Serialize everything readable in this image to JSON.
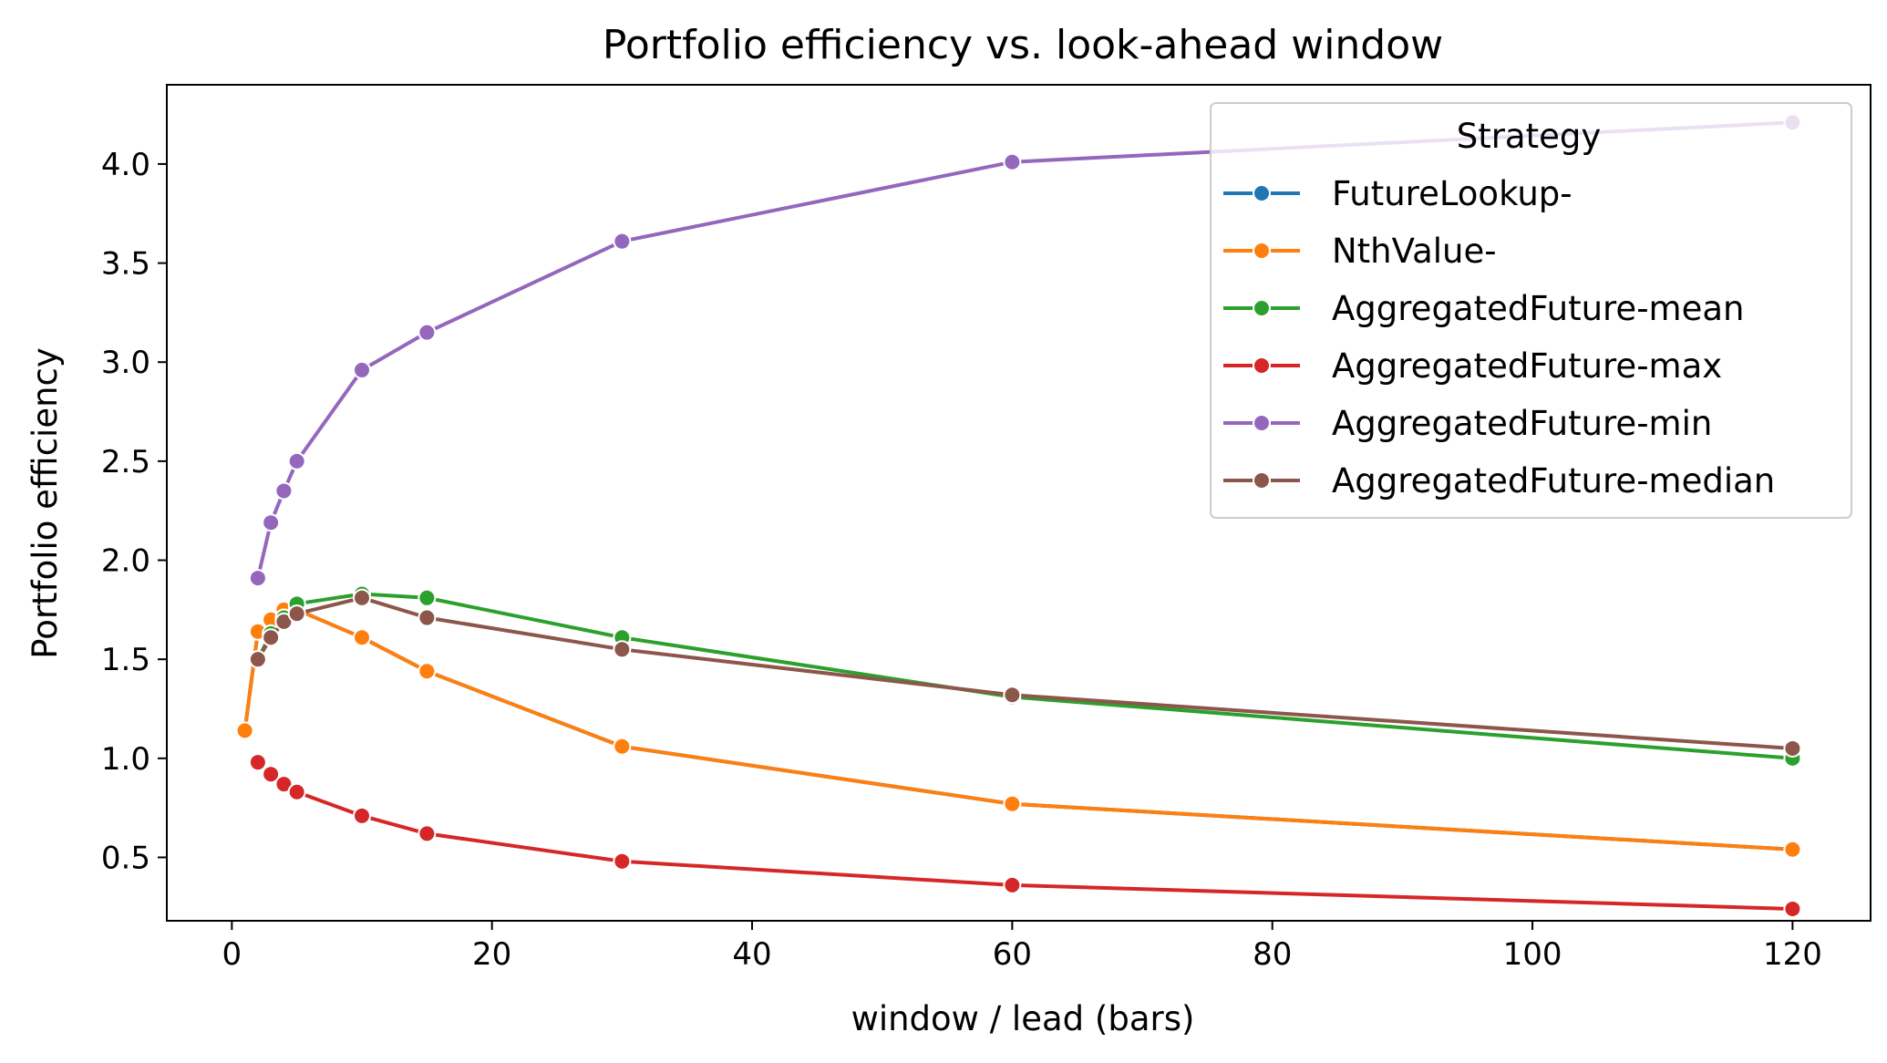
{
  "chart_data": {
    "type": "line",
    "title": "Portfolio efficiency vs. look-ahead window",
    "xlabel": "window / lead (bars)",
    "ylabel": "Portfolio efficiency",
    "xlim": [
      -5,
      126
    ],
    "ylim": [
      0.18,
      4.4
    ],
    "xticks": [
      0,
      20,
      40,
      60,
      80,
      100,
      120
    ],
    "yticks": [
      0.5,
      1.0,
      1.5,
      2.0,
      2.5,
      3.0,
      3.5,
      4.0
    ],
    "xtick_labels": [
      "0",
      "20",
      "40",
      "60",
      "80",
      "100",
      "120"
    ],
    "ytick_labels": [
      "0.5",
      "1.0",
      "1.5",
      "2.0",
      "2.5",
      "3.0",
      "3.5",
      "4.0"
    ],
    "grid": false,
    "legend": {
      "title": "Strategy",
      "position": "top-right"
    },
    "series": [
      {
        "name": "FutureLookup-",
        "color": "#1f77b4",
        "x": [
          1,
          2,
          3,
          4,
          5,
          10,
          15,
          30,
          60,
          120
        ],
        "y": [
          1.14,
          1.64,
          1.7,
          1.75,
          1.75,
          1.61,
          1.44,
          1.06,
          0.77,
          0.54
        ]
      },
      {
        "name": "NthValue-",
        "color": "#ff7f0e",
        "x": [
          1,
          2,
          3,
          4,
          5,
          10,
          15,
          30,
          60,
          120
        ],
        "y": [
          1.14,
          1.64,
          1.7,
          1.75,
          1.75,
          1.61,
          1.44,
          1.06,
          0.77,
          0.54
        ]
      },
      {
        "name": "AggregatedFuture-mean",
        "color": "#2ca02c",
        "x": [
          2,
          3,
          4,
          5,
          10,
          15,
          30,
          60,
          120
        ],
        "y": [
          1.5,
          1.63,
          1.71,
          1.78,
          1.83,
          1.81,
          1.61,
          1.31,
          1.0
        ]
      },
      {
        "name": "AggregatedFuture-max",
        "color": "#d62728",
        "x": [
          2,
          3,
          4,
          5,
          10,
          15,
          30,
          60,
          120
        ],
        "y": [
          0.98,
          0.92,
          0.87,
          0.83,
          0.71,
          0.62,
          0.48,
          0.36,
          0.24
        ]
      },
      {
        "name": "AggregatedFuture-min",
        "color": "#9467bd",
        "x": [
          2,
          3,
          4,
          5,
          10,
          15,
          30,
          60,
          120
        ],
        "y": [
          1.91,
          2.19,
          2.35,
          2.5,
          2.96,
          3.15,
          3.61,
          4.01,
          4.21
        ]
      },
      {
        "name": "AggregatedFuture-median",
        "color": "#8c564b",
        "x": [
          2,
          3,
          4,
          5,
          10,
          15,
          30,
          60,
          120
        ],
        "y": [
          1.5,
          1.61,
          1.69,
          1.73,
          1.81,
          1.71,
          1.55,
          1.32,
          1.05
        ]
      }
    ]
  }
}
